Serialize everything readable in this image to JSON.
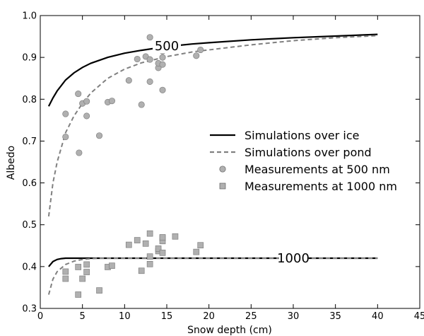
{
  "chart_data": {
    "type": "scatter",
    "xlabel": "Snow depth (cm)",
    "ylabel": "Albedo",
    "xlim": [
      0,
      45
    ],
    "ylim": [
      0.3,
      1.0
    ],
    "x_ticks": [
      0,
      5,
      10,
      15,
      20,
      25,
      30,
      35,
      40,
      45
    ],
    "y_ticks": [
      0.3,
      0.4,
      0.5,
      0.6,
      0.7,
      0.8,
      0.9,
      1.0
    ],
    "grid": false,
    "legend_position": "center-right",
    "curve_labels": [
      {
        "text": "500",
        "x": 15,
        "y": 0.927
      },
      {
        "text": "1000",
        "x": 30,
        "y": 0.42
      }
    ],
    "series": [
      {
        "name": "Simulations over ice",
        "style": "line-solid",
        "color": "#000000",
        "x": [
          1,
          1.5,
          2,
          3,
          4,
          5,
          6,
          8,
          10,
          12,
          15,
          18,
          20,
          25,
          30,
          35,
          40
        ],
        "y": [
          0.783,
          0.803,
          0.82,
          0.846,
          0.863,
          0.876,
          0.886,
          0.9,
          0.91,
          0.917,
          0.926,
          0.932,
          0.935,
          0.942,
          0.947,
          0.951,
          0.955
        ]
      },
      {
        "name": "Simulations over pond",
        "style": "line-dashed",
        "color": "#808080",
        "x": [
          1,
          1.5,
          2,
          3,
          4,
          5,
          6,
          8,
          10,
          12,
          15,
          18,
          20,
          25,
          30,
          35,
          40
        ],
        "y": [
          0.52,
          0.6,
          0.65,
          0.72,
          0.76,
          0.79,
          0.815,
          0.85,
          0.872,
          0.887,
          0.902,
          0.913,
          0.918,
          0.93,
          0.94,
          0.947,
          0.952
        ]
      },
      {
        "name": "",
        "style": "line-solid",
        "color": "#000000",
        "x": [
          1,
          1.5,
          2,
          2.5,
          3,
          4,
          5,
          10,
          20,
          30,
          40
        ],
        "y": [
          0.4,
          0.412,
          0.417,
          0.419,
          0.42,
          0.42,
          0.42,
          0.42,
          0.42,
          0.42,
          0.42
        ]
      },
      {
        "name": "",
        "style": "line-dashed",
        "color": "#808080",
        "x": [
          1,
          1.5,
          2,
          3,
          4,
          5,
          6,
          7,
          10,
          20,
          30,
          40
        ],
        "y": [
          0.333,
          0.37,
          0.388,
          0.405,
          0.413,
          0.417,
          0.419,
          0.42,
          0.42,
          0.42,
          0.42,
          0.42
        ]
      },
      {
        "name": "Measurements at 500 nm",
        "style": "marker-circle",
        "color": "#b0b0b0",
        "x": [
          3,
          3,
          4.5,
          4.6,
          5,
          5.5,
          5.5,
          7,
          8,
          8.5,
          10.5,
          11.5,
          12,
          12.5,
          13,
          13,
          13,
          14,
          14,
          14.5,
          14.5,
          14.5,
          14.5,
          16,
          18.5,
          19
        ],
        "y": [
          0.765,
          0.71,
          0.813,
          0.672,
          0.79,
          0.795,
          0.76,
          0.713,
          0.793,
          0.796,
          0.845,
          0.896,
          0.787,
          0.902,
          0.948,
          0.895,
          0.842,
          0.875,
          0.886,
          0.915,
          0.9,
          0.883,
          0.822,
          0.922,
          0.904,
          0.918
        ]
      },
      {
        "name": "Measurements at 1000 nm",
        "style": "marker-square",
        "color": "#b0b0b0",
        "x": [
          3,
          3,
          4.5,
          4.5,
          5,
          5.5,
          5.5,
          7,
          8,
          8.5,
          10.5,
          11.5,
          12,
          12.5,
          13,
          13,
          13,
          14,
          14,
          14.5,
          14.5,
          14.5,
          14.5,
          16,
          18.5,
          19
        ],
        "y": [
          0.388,
          0.371,
          0.399,
          0.333,
          0.371,
          0.405,
          0.387,
          0.343,
          0.399,
          0.402,
          0.452,
          0.463,
          0.39,
          0.455,
          0.479,
          0.424,
          0.406,
          0.437,
          0.443,
          0.468,
          0.461,
          0.47,
          0.433,
          0.472,
          0.435,
          0.451
        ]
      }
    ]
  }
}
